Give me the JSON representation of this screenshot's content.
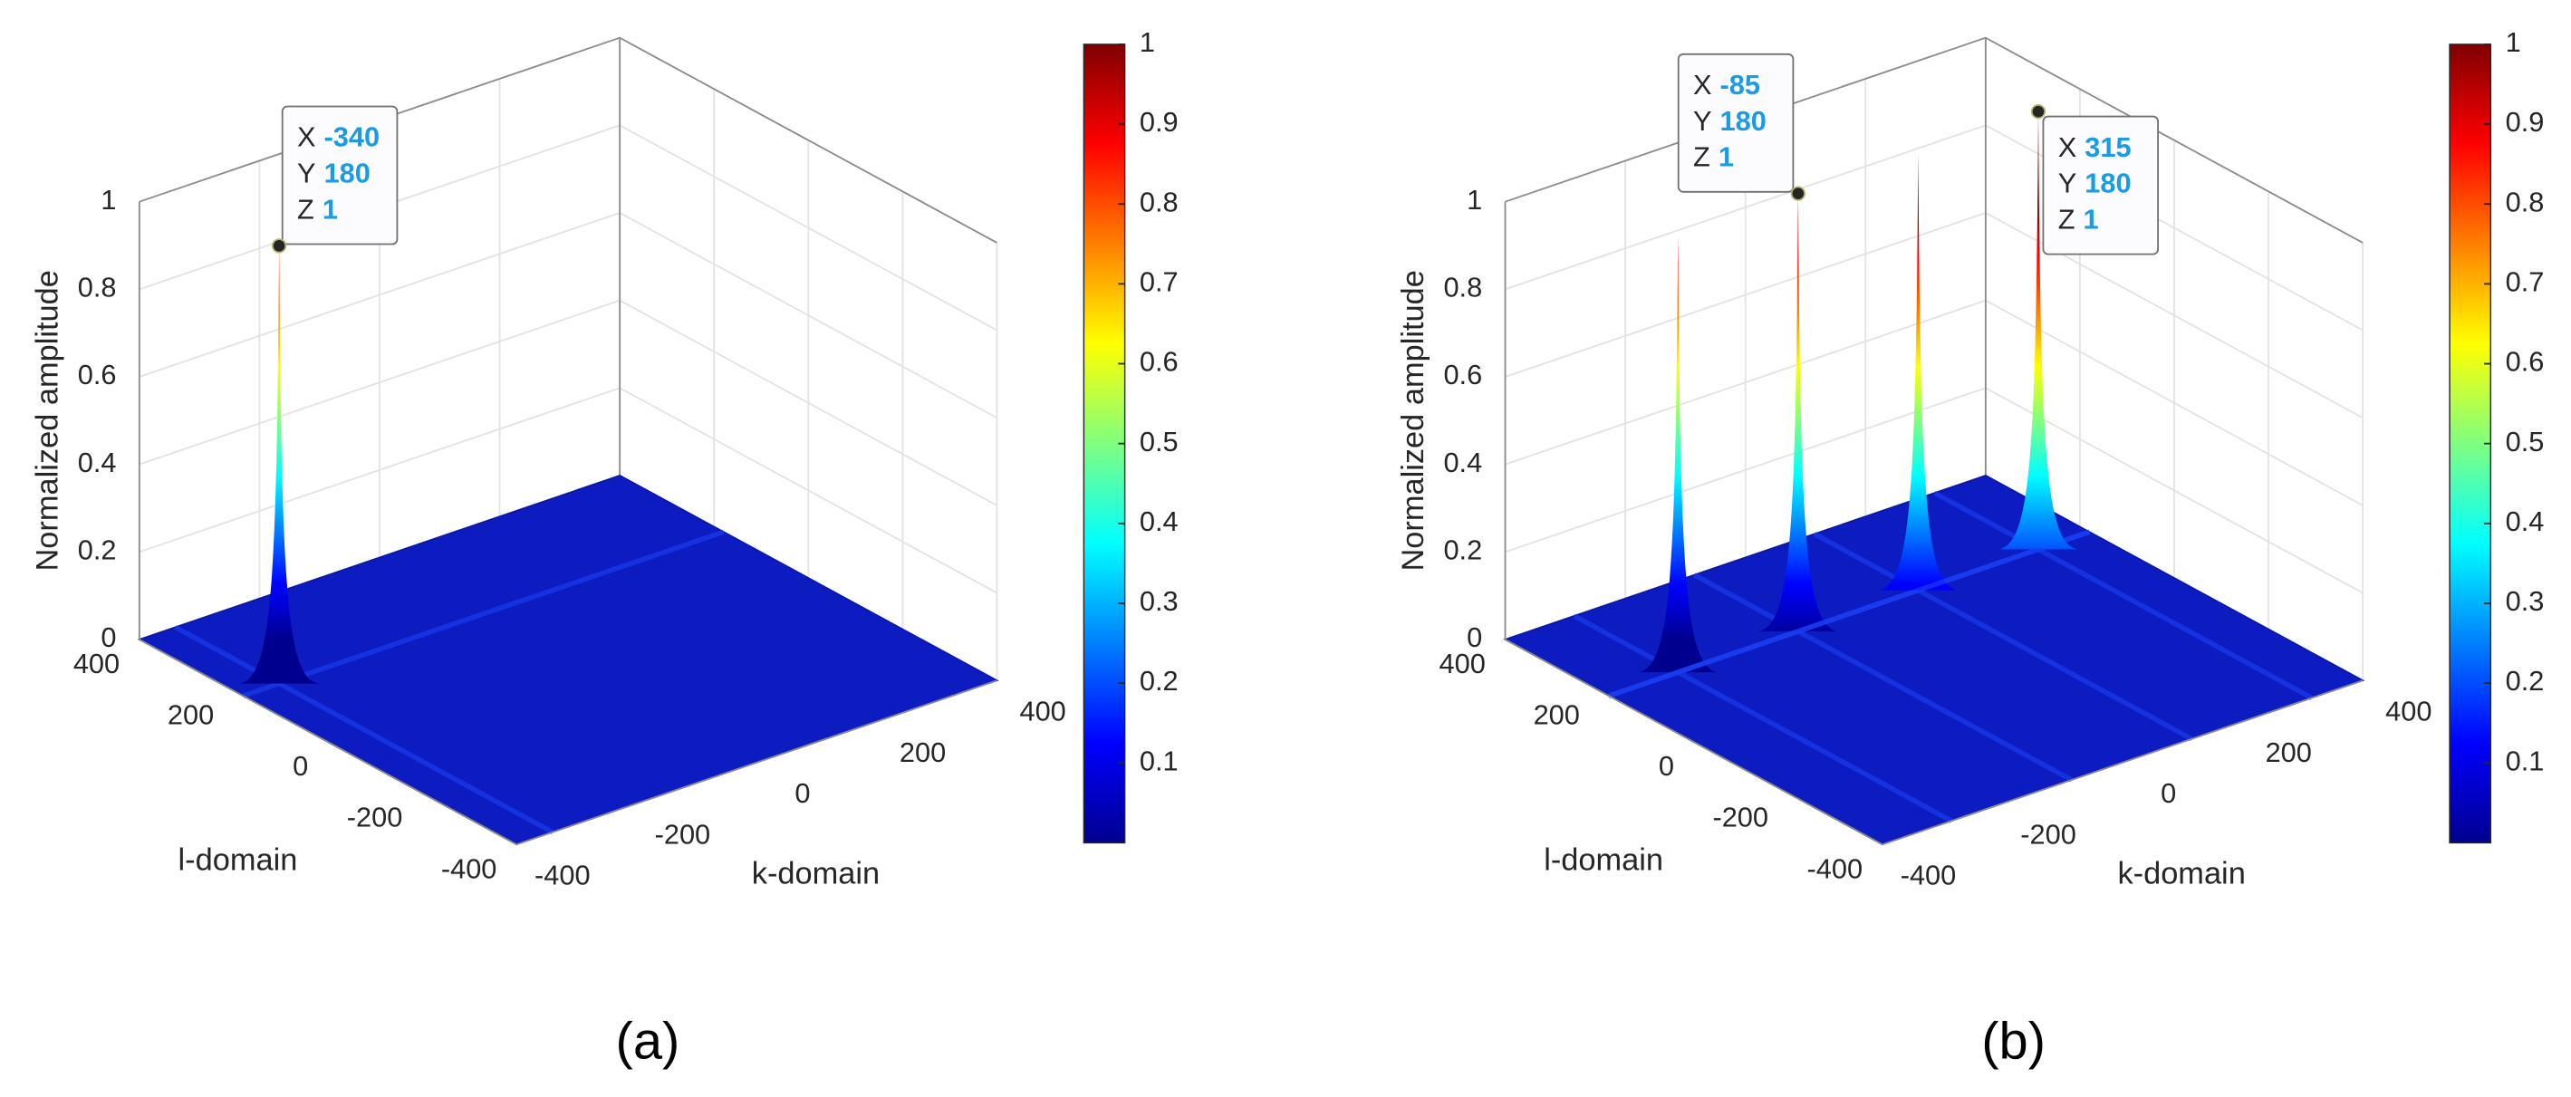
{
  "chart_data": [
    {
      "type": "surface3d",
      "label": "(a)",
      "xlabel": "k-domain",
      "ylabel": "l-domain",
      "zlabel": "Normalized amplitude",
      "xlim": [
        -400,
        400
      ],
      "xticks": [
        -400,
        -200,
        0,
        200,
        400
      ],
      "ylim": [
        -400,
        400
      ],
      "yticks": [
        -400,
        -200,
        0,
        200,
        400
      ],
      "zlim": [
        0,
        1
      ],
      "zticks": [
        0,
        0.2,
        0.4,
        0.6,
        0.8,
        1
      ],
      "colormap": "jet",
      "colorbar": {
        "lim": [
          0,
          1
        ],
        "ticks": [
          0.1,
          0.2,
          0.3,
          0.4,
          0.5,
          0.6,
          0.7,
          0.8,
          0.9,
          1
        ]
      },
      "grid": true,
      "peaks": {
        "x": [
          -340
        ],
        "y": [
          180
        ],
        "z": [
          1
        ]
      },
      "datatip_labels": [
        "X",
        "Y",
        "Z"
      ],
      "datatips": [
        {
          "x": -340,
          "y": 180,
          "z": 1
        }
      ]
    },
    {
      "type": "surface3d",
      "label": "(b)",
      "xlabel": "k-domain",
      "ylabel": "l-domain",
      "zlabel": "Normalized amplitude",
      "xlim": [
        -400,
        400
      ],
      "xticks": [
        -400,
        -200,
        0,
        200,
        400
      ],
      "ylim": [
        -400,
        400
      ],
      "yticks": [
        -400,
        -200,
        0,
        200,
        400
      ],
      "zlim": [
        0,
        1
      ],
      "zticks": [
        0,
        0.2,
        0.4,
        0.6,
        0.8,
        1
      ],
      "colormap": "jet",
      "colorbar": {
        "lim": [
          0,
          1
        ],
        "ticks": [
          0.1,
          0.2,
          0.3,
          0.4,
          0.5,
          0.6,
          0.7,
          0.8,
          0.9,
          1
        ]
      },
      "grid": true,
      "peaks": {
        "x": [
          -285,
          -85,
          115,
          315
        ],
        "y": [
          180,
          180,
          180,
          180
        ],
        "z": [
          1,
          1,
          1,
          1
        ]
      },
      "datatip_labels": [
        "X",
        "Y",
        "Z"
      ],
      "datatips": [
        {
          "x": -85,
          "y": 180,
          "z": 1
        },
        {
          "x": 315,
          "y": 180,
          "z": 1
        }
      ]
    }
  ]
}
